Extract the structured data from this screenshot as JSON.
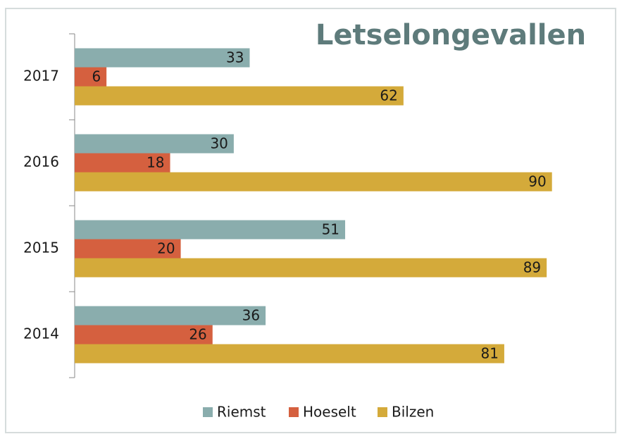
{
  "chart_data": {
    "type": "barh",
    "title": "Letselongevallen",
    "categories": [
      "2014",
      "2015",
      "2016",
      "2017"
    ],
    "series": [
      {
        "name": "Riemst",
        "color": "#8aadad",
        "values": [
          36,
          51,
          30,
          33
        ]
      },
      {
        "name": "Hoeselt",
        "color": "#d5603f",
        "values": [
          26,
          20,
          18,
          6
        ]
      },
      {
        "name": "Bilzen",
        "color": "#d4aa3a",
        "values": [
          81,
          89,
          90,
          62
        ]
      }
    ],
    "xlim": [
      0,
      100
    ],
    "legend": "bottom"
  }
}
